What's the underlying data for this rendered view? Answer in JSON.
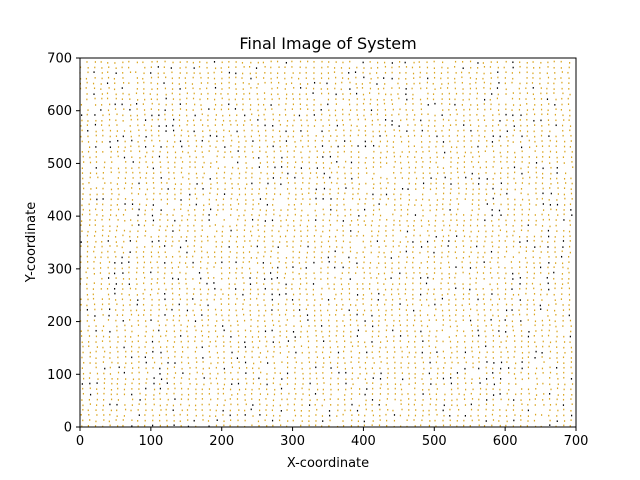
{
  "chart_data": {
    "type": "scatter",
    "title": "Final Image of System",
    "xlabel": "X-coordinate",
    "ylabel": "Y-coordinate",
    "xlim": [
      0,
      700
    ],
    "ylim": [
      0,
      700
    ],
    "xticks": [
      0,
      100,
      200,
      300,
      400,
      500,
      600,
      700
    ],
    "yticks": [
      0,
      100,
      200,
      300,
      400,
      500,
      600,
      700
    ],
    "grid": false,
    "legend": "none",
    "series": [
      {
        "marker": "point",
        "color": "#daa520",
        "lattice_spacing": 10,
        "description": "dense quasi-regular lattice of particles filling the whole domain"
      },
      {
        "marker": "point",
        "color": "#000000",
        "description": "sparse dark particles scattered throughout the domain"
      }
    ]
  }
}
